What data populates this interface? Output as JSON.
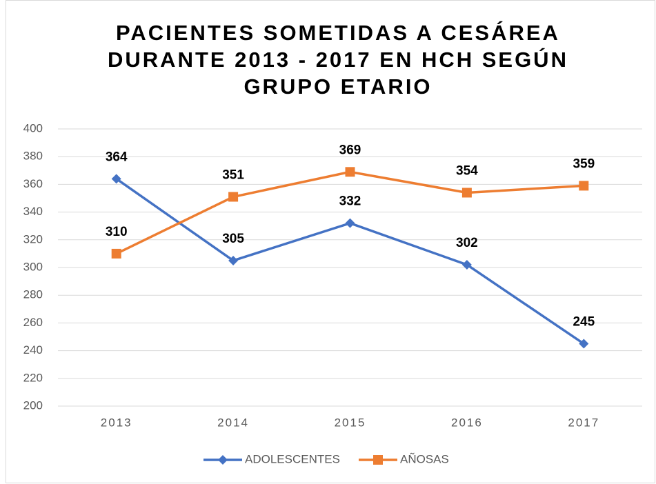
{
  "chart_data": {
    "type": "line",
    "title": [
      "PACIENTES SOMETIDAS A CESÁREA",
      "DURANTE 2013 - 2017 EN HCH SEGÚN",
      "GRUPO ETARIO"
    ],
    "categories": [
      "2013",
      "2014",
      "2015",
      "2016",
      "2017"
    ],
    "series": [
      {
        "name": "ADOLESCENTES",
        "color": "#4472c4",
        "marker": "diamond",
        "values": [
          364,
          305,
          332,
          302,
          245
        ]
      },
      {
        "name": "AÑOSAS",
        "color": "#ed7d31",
        "marker": "square",
        "values": [
          310,
          351,
          369,
          354,
          359
        ]
      }
    ],
    "ylim": [
      200,
      400
    ],
    "yticks": [
      200,
      220,
      240,
      260,
      280,
      300,
      320,
      340,
      360,
      380,
      400
    ],
    "grid": true,
    "legend": "bottom"
  }
}
